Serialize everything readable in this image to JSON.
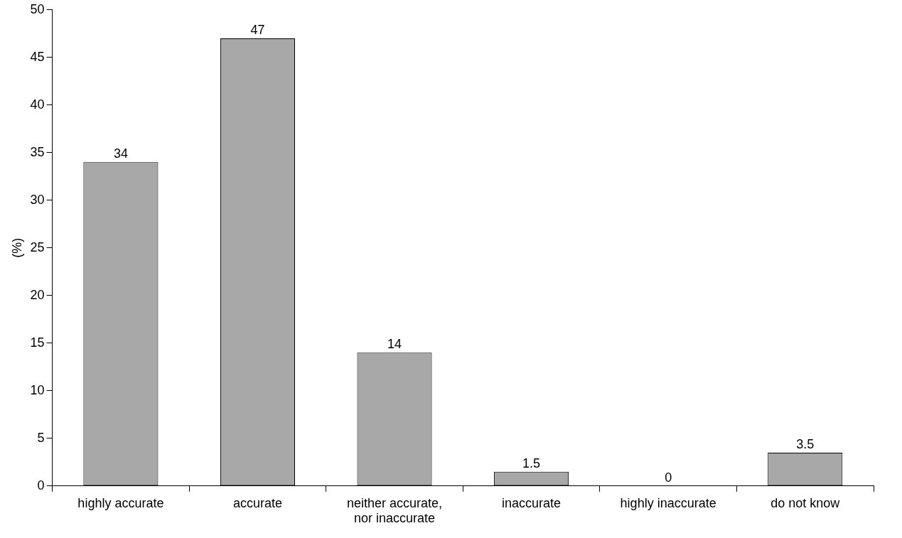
{
  "chart_data": {
    "type": "bar",
    "ylabel": "(%)",
    "categories": [
      "highly accurate",
      "accurate",
      "neither accurate, nor inaccurate",
      "inaccurate",
      "highly inaccurate",
      "do not know"
    ],
    "values": [
      34,
      47,
      14,
      1.5,
      0,
      3.5
    ],
    "color": "#a8a8a8",
    "ylim": [
      0,
      50
    ],
    "yticks": [
      0,
      5,
      10,
      15,
      20,
      25,
      30,
      35,
      40,
      45,
      50
    ],
    "grid": false,
    "legend": false,
    "data_labels": true
  }
}
